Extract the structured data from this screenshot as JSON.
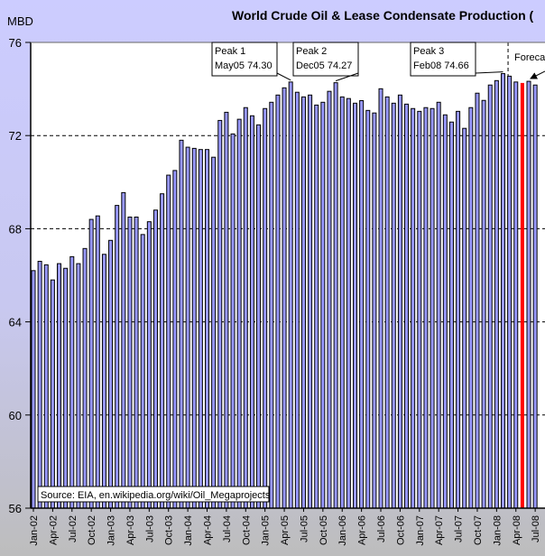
{
  "chart_data": {
    "type": "bar",
    "title": "World Crude Oil & Lease Condensate Production (",
    "ylabel": "MBD",
    "xlabel": "",
    "ylim": [
      56,
      76
    ],
    "yticks": [
      56,
      60,
      64,
      68,
      72,
      76
    ],
    "grid": "dashed horizontal at 60, 64, 68, 72",
    "x_tick_labels": [
      "Jan-02",
      "Apr-02",
      "Jul-02",
      "Oct-02",
      "Jan-03",
      "Apr-03",
      "Jul-03",
      "Oct-03",
      "Jan-04",
      "Apr-04",
      "Jul-04",
      "Oct-04",
      "Jan-05",
      "Apr-05",
      "Jul-05",
      "Oct-05",
      "Jan-06",
      "Apr-06",
      "Jul-06",
      "Oct-06",
      "Jan-07",
      "Apr-07",
      "Jul-07",
      "Oct-07",
      "Jan-08",
      "Apr-08",
      "Jul-08"
    ],
    "start_month": "Jan-02",
    "values": [
      66.2,
      66.6,
      66.45,
      65.8,
      66.5,
      66.3,
      66.8,
      66.5,
      67.15,
      68.4,
      68.55,
      66.9,
      67.5,
      69.0,
      69.55,
      68.5,
      68.5,
      67.75,
      68.3,
      68.8,
      69.5,
      70.3,
      70.5,
      71.8,
      71.5,
      71.45,
      71.4,
      71.4,
      71.07,
      72.65,
      73.0,
      72.07,
      72.7,
      73.2,
      72.85,
      72.46,
      73.16,
      73.43,
      73.74,
      74.05,
      74.3,
      73.86,
      73.66,
      73.74,
      73.31,
      73.43,
      73.9,
      74.27,
      73.66,
      73.59,
      73.39,
      73.5,
      73.08,
      72.97,
      74.01,
      73.66,
      73.39,
      73.74,
      73.35,
      73.16,
      73.04,
      73.2,
      73.16,
      73.43,
      72.89,
      72.58,
      73.04,
      72.31,
      73.2,
      73.82,
      73.51,
      74.17,
      74.36,
      74.66,
      74.55,
      74.3,
      74.26,
      74.33,
      74.17
    ],
    "highlight_index": 76,
    "forecast_start_index": 74,
    "annotations": [
      {
        "line1": "Peak 1",
        "line2": "May05 74.30",
        "index": 40
      },
      {
        "line1": "Peak 2",
        "line2": "Dec05 74.27",
        "index": 47
      },
      {
        "line1": "Peak 3",
        "line2": "Feb08 74.66",
        "index": 73
      }
    ],
    "forecast_label": "Forecast",
    "source": "Source: EIA, en.wikipedia.org/wiki/Oil_Megaprojects"
  },
  "colors": {
    "bar": "#9999ff",
    "highlight": "#ff0000",
    "bg_top": "#ccccff",
    "bg_bottom": "#c0c0c0",
    "plot": "#ffffff"
  }
}
